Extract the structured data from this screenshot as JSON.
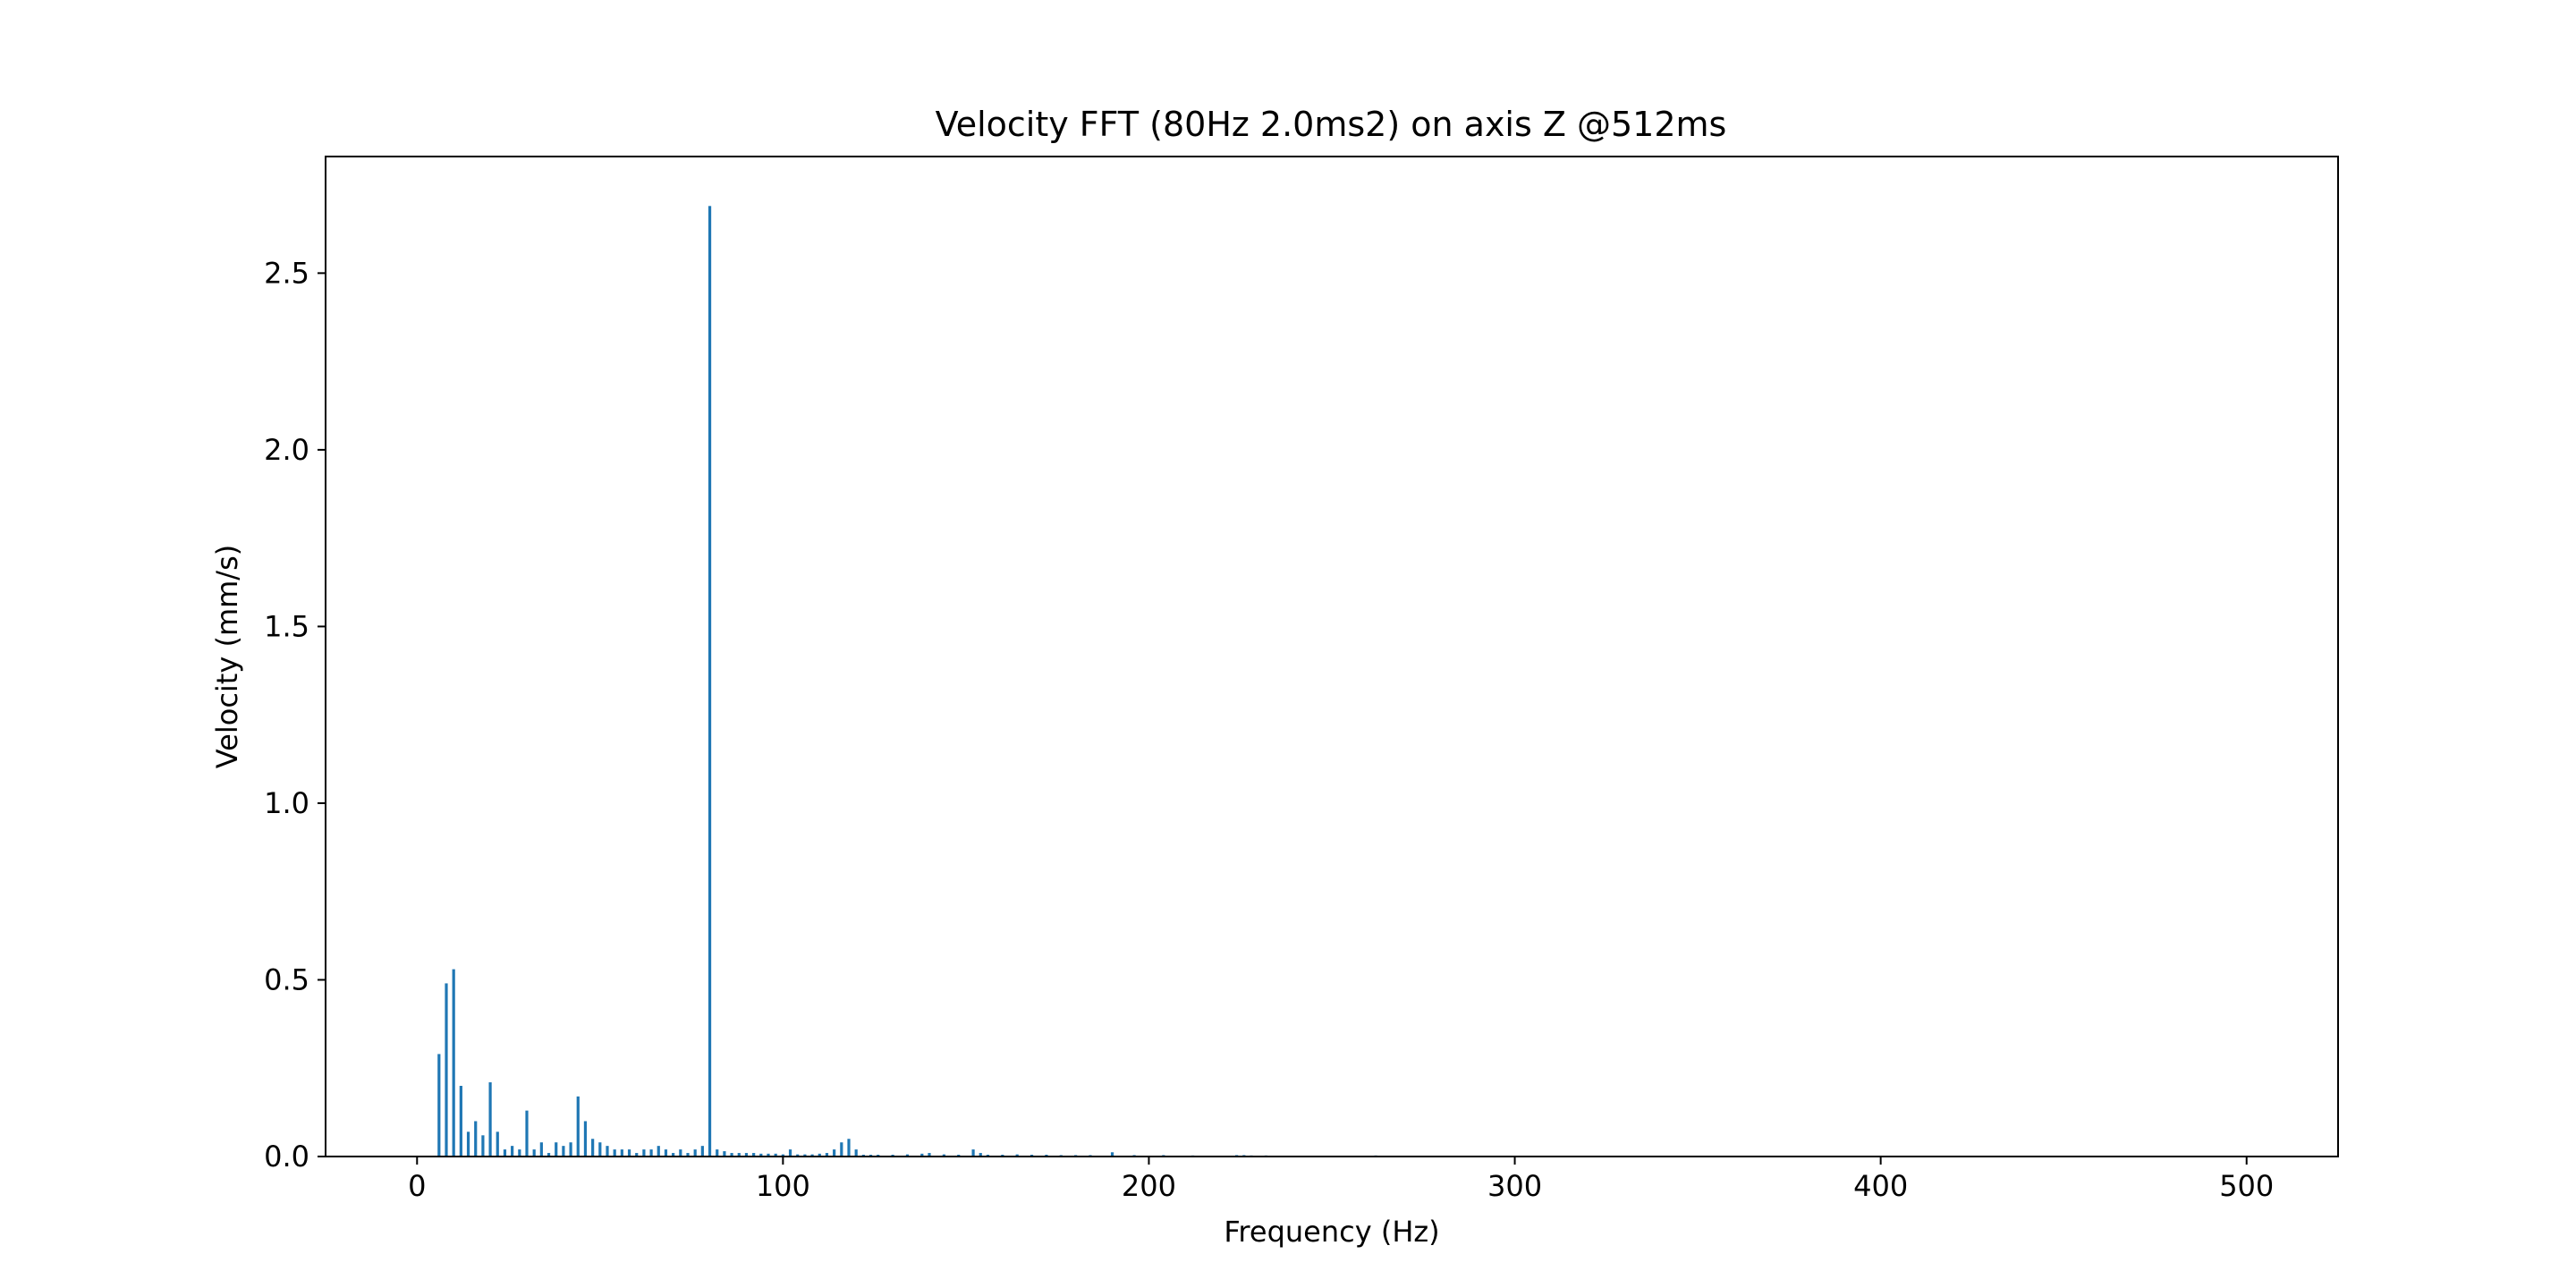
{
  "chart_data": {
    "type": "bar",
    "title": "Velocity FFT (80Hz 2.0ms2) on axis Z @512ms",
    "xlabel": "Frequency (Hz)",
    "ylabel": "Velocity (mm/s)",
    "xlim": [
      -25,
      525
    ],
    "ylim": [
      0,
      2.83
    ],
    "xticks": [
      0,
      100,
      200,
      300,
      400,
      500
    ],
    "xtick_labels": [
      "0",
      "100",
      "200",
      "300",
      "400",
      "500"
    ],
    "yticks": [
      0.0,
      0.5,
      1.0,
      1.5,
      2.0,
      2.5
    ],
    "ytick_labels": [
      "0.0",
      "0.5",
      "1.0",
      "1.5",
      "2.0",
      "2.5"
    ],
    "grid": false,
    "bar_color": "#1f77b4",
    "series": [
      {
        "x": [
          6,
          8,
          10,
          12,
          14,
          16,
          18,
          20,
          22,
          24,
          26,
          28,
          30,
          32,
          34,
          36,
          38,
          40,
          42,
          44,
          46,
          48,
          50,
          52,
          54,
          56,
          58,
          60,
          62,
          64,
          66,
          68,
          70,
          72,
          74,
          76,
          78,
          80,
          82,
          84,
          86,
          88,
          90,
          92,
          94,
          96,
          98,
          100,
          102,
          104,
          106,
          108,
          110,
          112,
          114,
          116,
          118,
          120,
          122,
          124,
          126,
          130,
          134,
          138,
          140,
          144,
          148,
          152,
          154,
          156,
          160,
          164,
          168,
          172,
          176,
          180,
          184,
          190,
          196,
          204,
          212,
          224,
          226,
          228,
          232,
          262
        ],
        "values": [
          0.29,
          0.49,
          0.53,
          0.2,
          0.07,
          0.1,
          0.06,
          0.21,
          0.07,
          0.02,
          0.03,
          0.02,
          0.13,
          0.02,
          0.04,
          0.01,
          0.04,
          0.03,
          0.04,
          0.17,
          0.1,
          0.05,
          0.04,
          0.03,
          0.02,
          0.02,
          0.02,
          0.01,
          0.02,
          0.02,
          0.03,
          0.02,
          0.01,
          0.02,
          0.01,
          0.02,
          0.03,
          2.69,
          0.02,
          0.015,
          0.01,
          0.01,
          0.01,
          0.01,
          0.008,
          0.008,
          0.008,
          0.006,
          0.02,
          0.006,
          0.006,
          0.006,
          0.008,
          0.01,
          0.02,
          0.04,
          0.05,
          0.02,
          0.005,
          0.005,
          0.005,
          0.005,
          0.006,
          0.008,
          0.01,
          0.006,
          0.005,
          0.02,
          0.01,
          0.005,
          0.005,
          0.006,
          0.005,
          0.005,
          0.004,
          0.004,
          0.004,
          0.012,
          0.004,
          0.004,
          0.003,
          0.004,
          0.004,
          0.003,
          0.003,
          0.003
        ]
      }
    ]
  }
}
